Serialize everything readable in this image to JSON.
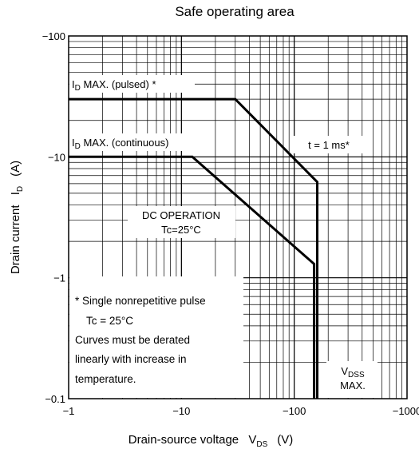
{
  "chart_data": {
    "type": "line",
    "title": "Safe operating area",
    "x_scale": "log",
    "y_scale": "log",
    "xlim": [
      -1,
      -1000
    ],
    "ylim": [
      -0.1,
      -100
    ],
    "grid": true,
    "x_ticks": [
      {
        "value": -1,
        "label": "−1"
      },
      {
        "value": -10,
        "label": "−10"
      },
      {
        "value": -100,
        "label": "−100"
      },
      {
        "value": -1000,
        "label": "−1000"
      }
    ],
    "y_ticks": [
      {
        "value": -0.1,
        "label": "−0.1"
      },
      {
        "value": -1,
        "label": "−1"
      },
      {
        "value": -10,
        "label": "−10"
      },
      {
        "value": -100,
        "label": "−100"
      }
    ],
    "xlabel": {
      "text": "Drain-source voltage",
      "symbol": "V",
      "sub": "DS",
      "unit": "(V)"
    },
    "ylabel": {
      "text": "Drain current",
      "symbol": "I",
      "sub": "D",
      "unit": "(A)"
    },
    "series": [
      {
        "id": "pulsed",
        "points": [
          [
            -1,
            -30
          ],
          [
            -30,
            -30
          ],
          [
            -160,
            -6.2
          ],
          [
            -160,
            -0.1
          ]
        ]
      },
      {
        "id": "dc",
        "points": [
          [
            -1,
            -10
          ],
          [
            -12.5,
            -10
          ],
          [
            -150,
            -1.3
          ],
          [
            -150,
            -0.1
          ]
        ]
      }
    ],
    "annotations": {
      "id_pulsed": {
        "prefix": "I",
        "sub": "D",
        "text": " MAX. (pulsed) *"
      },
      "id_cont": {
        "prefix": "I",
        "sub": "D",
        "text": " MAX. (continuous)"
      },
      "t_1ms": "t = 1 ms*",
      "dc_op_1": "DC OPERATION",
      "dc_op_2": "Tc=25°C",
      "vdss_1": {
        "prefix": "V",
        "sub": "DSS"
      },
      "vdss_2": "MAX.",
      "note_lines": [
        "* Single nonrepetitive pulse",
        "Tc = 25°C",
        "Curves  must  be  derated",
        "linearly  with  increase  in",
        "temperature."
      ]
    }
  }
}
